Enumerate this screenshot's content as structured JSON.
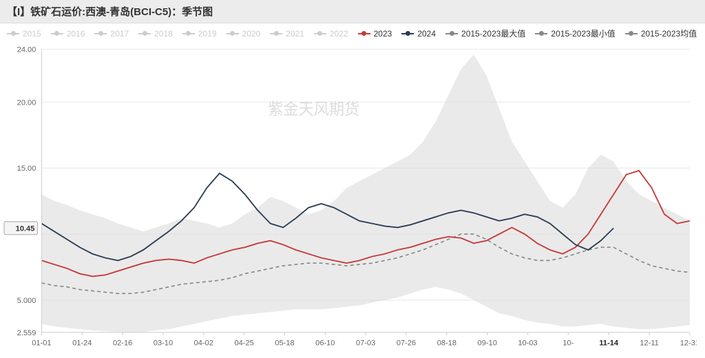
{
  "title": "【I】铁矿石运价:西澳-青岛(BCI-C5)：季节图",
  "watermark": "紫金天风期货",
  "legend": [
    {
      "label": "2015",
      "color": "#cccccc",
      "inactive": true
    },
    {
      "label": "2016",
      "color": "#cccccc",
      "inactive": true
    },
    {
      "label": "2017",
      "color": "#cccccc",
      "inactive": true
    },
    {
      "label": "2018",
      "color": "#cccccc",
      "inactive": true
    },
    {
      "label": "2019",
      "color": "#cccccc",
      "inactive": true
    },
    {
      "label": "2020",
      "color": "#cccccc",
      "inactive": true
    },
    {
      "label": "2021",
      "color": "#cccccc",
      "inactive": true
    },
    {
      "label": "2022",
      "color": "#cccccc",
      "inactive": true
    },
    {
      "label": "2023",
      "color": "#c73a3a",
      "inactive": false
    },
    {
      "label": "2024",
      "color": "#2b3d54",
      "inactive": false
    },
    {
      "label": "2015-2023最大值",
      "color": "#888888",
      "inactive": false
    },
    {
      "label": "2015-2023最小值",
      "color": "#888888",
      "inactive": false
    },
    {
      "label": "2015-2023均值",
      "color": "#888888",
      "inactive": false,
      "dash": true
    }
  ],
  "chart": {
    "type": "line",
    "ylim": [
      2.559,
      24.0
    ],
    "yticks": [
      2.559,
      5.0,
      10.45,
      15.0,
      20.0,
      24.0
    ],
    "ytick_labels": [
      "2.559",
      "5.000",
      "10.45",
      "15.00",
      "20.00",
      "24.00"
    ],
    "y_highlight": {
      "value": 10.45,
      "label": "10.45"
    },
    "xticks": [
      "01-01",
      "01-24",
      "02-16",
      "03-10",
      "04-02",
      "04-25",
      "05-18",
      "06-10",
      "07-03",
      "07-26",
      "08-18",
      "09-10",
      "10-03",
      "10-",
      "11-14",
      "12-11",
      "12-31"
    ],
    "x_highlight_index": 14,
    "grid_color": "#e8e8e8",
    "background_color": "#ffffff",
    "band_fill": "#d9d9d9",
    "band_opacity": 0.55,
    "series": {
      "max": {
        "color": "#d9d9d9",
        "data": [
          13.0,
          12.5,
          12.2,
          11.8,
          11.5,
          11.2,
          10.8,
          10.5,
          10.2,
          10.5,
          10.8,
          11.2,
          11.0,
          10.8,
          10.5,
          10.8,
          11.5,
          12.0,
          12.8,
          12.5,
          12.0,
          11.5,
          11.8,
          12.5,
          13.5,
          14.0,
          14.5,
          15.0,
          15.5,
          16.0,
          17.0,
          18.5,
          20.5,
          22.5,
          23.6,
          22.0,
          19.5,
          17.0,
          15.5,
          14.0,
          12.5,
          12.0,
          13.0,
          15.0,
          16.0,
          15.5,
          14.0,
          13.0,
          12.5,
          12.0,
          11.5,
          11.0
        ]
      },
      "min": {
        "color": "#d9d9d9",
        "data": [
          3.2,
          3.0,
          2.9,
          2.8,
          2.7,
          2.65,
          2.6,
          2.559,
          2.6,
          2.7,
          2.8,
          3.0,
          3.2,
          3.4,
          3.6,
          3.8,
          3.9,
          4.0,
          4.1,
          4.2,
          4.3,
          4.3,
          4.3,
          4.4,
          4.5,
          4.6,
          4.8,
          5.0,
          5.2,
          5.5,
          5.8,
          6.0,
          5.8,
          5.5,
          5.0,
          4.5,
          4.0,
          3.8,
          3.5,
          3.3,
          3.2,
          3.0,
          3.0,
          3.1,
          3.2,
          3.0,
          2.9,
          2.8,
          2.8,
          2.9,
          3.0,
          3.1
        ]
      },
      "mean": {
        "color": "#888888",
        "dash": "5,4",
        "width": 1.6,
        "data": [
          6.3,
          6.1,
          6.0,
          5.8,
          5.7,
          5.6,
          5.5,
          5.5,
          5.6,
          5.8,
          6.0,
          6.2,
          6.3,
          6.4,
          6.5,
          6.7,
          7.0,
          7.2,
          7.4,
          7.6,
          7.7,
          7.8,
          7.8,
          7.7,
          7.6,
          7.7,
          7.8,
          8.0,
          8.2,
          8.5,
          8.8,
          9.2,
          9.6,
          10.0,
          10.0,
          9.6,
          9.0,
          8.5,
          8.2,
          8.0,
          8.0,
          8.2,
          8.5,
          8.8,
          9.0,
          9.0,
          8.5,
          8.0,
          7.6,
          7.4,
          7.2,
          7.1
        ]
      },
      "y2023": {
        "color": "#c73a3a",
        "width": 1.8,
        "data": [
          8.0,
          7.7,
          7.4,
          7.0,
          6.8,
          6.9,
          7.2,
          7.5,
          7.8,
          8.0,
          8.1,
          8.0,
          7.8,
          8.2,
          8.5,
          8.8,
          9.0,
          9.3,
          9.5,
          9.2,
          8.8,
          8.5,
          8.2,
          8.0,
          7.8,
          8.0,
          8.3,
          8.5,
          8.8,
          9.0,
          9.3,
          9.6,
          9.8,
          9.7,
          9.3,
          9.5,
          10.0,
          10.5,
          10.0,
          9.3,
          8.8,
          8.5,
          9.0,
          10.0,
          11.5,
          13.0,
          14.5,
          14.8,
          13.5,
          11.5,
          10.8,
          11.0
        ]
      },
      "y2024": {
        "color": "#2b3d54",
        "width": 1.8,
        "data": [
          10.8,
          10.2,
          9.6,
          9.0,
          8.5,
          8.2,
          8.0,
          8.3,
          8.8,
          9.5,
          10.2,
          11.0,
          12.0,
          13.5,
          14.6,
          14.0,
          13.0,
          11.8,
          10.8,
          10.5,
          11.2,
          12.0,
          12.3,
          12.0,
          11.5,
          11.0,
          10.8,
          10.6,
          10.5,
          10.7,
          11.0,
          11.3,
          11.6,
          11.8,
          11.6,
          11.3,
          11.0,
          11.2,
          11.5,
          11.3,
          10.8,
          10.0,
          9.2,
          8.8,
          9.5,
          10.45
        ]
      }
    }
  },
  "style": {
    "title_fontsize": 15,
    "legend_fontsize": 12,
    "tick_fontsize": 11
  }
}
